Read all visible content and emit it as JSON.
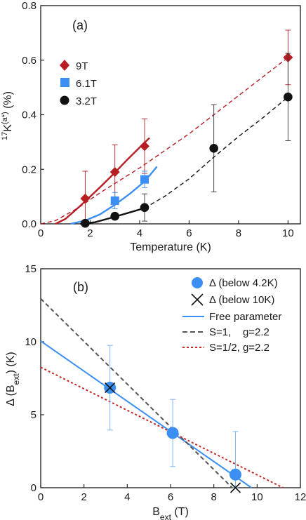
{
  "chart_data": [
    {
      "panel": "(a)",
      "type": "scatter",
      "xlabel": "Temperature (K)",
      "ylabel_parts": {
        "pre": "17",
        "main": "K",
        "sup": "(a*)",
        "unit": " (%)"
      },
      "xlim": [
        0,
        10.5
      ],
      "ylim": [
        0,
        0.8
      ],
      "xticks": [
        0,
        2,
        4,
        6,
        8,
        10
      ],
      "xtick_labels": [
        "0",
        "2",
        "4",
        "6",
        "8",
        "10"
      ],
      "yticks": [
        0,
        0.2,
        0.4,
        0.6,
        0.8
      ],
      "ytick_labels": [
        "0.0",
        "0.2",
        "0.4",
        "0.6",
        "0.8"
      ],
      "legend_position": "upper-left",
      "series": [
        {
          "name": "9T",
          "marker": "diamond",
          "color": "#b81d24",
          "x": [
            1.8,
            3.0,
            4.2,
            10.0
          ],
          "y": [
            0.093,
            0.19,
            0.285,
            0.61
          ],
          "err": [
            0.1,
            0.1,
            0.1,
            0.1
          ]
        },
        {
          "name": "6.1T",
          "marker": "square",
          "color": "#3b8ff3",
          "x": [
            3.0,
            4.2
          ],
          "y": [
            0.085,
            0.163
          ],
          "err": [
            0.03,
            0.03
          ]
        },
        {
          "name": "3.2T",
          "marker": "circle",
          "color": "#111111",
          "x": [
            1.8,
            3.0,
            4.2,
            7.0,
            10.0
          ],
          "y": [
            0.002,
            0.028,
            0.06,
            0.277,
            0.465
          ],
          "err": [
            0.0,
            0.0,
            0.05,
            0.16,
            0.16
          ]
        }
      ],
      "curves": [
        {
          "color": "#b81d24",
          "style": "solid",
          "points": [
            [
              0.6,
              0
            ],
            [
              1,
              0.018
            ],
            [
              1.5,
              0.058
            ],
            [
              2,
              0.1
            ],
            [
              2.5,
              0.143
            ],
            [
              3,
              0.188
            ],
            [
              3.5,
              0.235
            ],
            [
              4,
              0.28
            ],
            [
              4.4,
              0.315
            ]
          ]
        },
        {
          "color": "#b81d24",
          "style": "dashed",
          "points": [
            [
              0,
              0
            ],
            [
              0.6,
              0.012
            ],
            [
              1.5,
              0.058
            ],
            [
              2.5,
              0.12
            ],
            [
              4,
              0.205
            ],
            [
              6,
              0.33
            ],
            [
              8,
              0.47
            ],
            [
              10,
              0.61
            ]
          ]
        },
        {
          "color": "#3b8ff3",
          "style": "solid",
          "points": [
            [
              1.2,
              0
            ],
            [
              1.8,
              0.012
            ],
            [
              2.4,
              0.035
            ],
            [
              3,
              0.07
            ],
            [
              3.6,
              0.11
            ],
            [
              4.2,
              0.155
            ],
            [
              4.7,
              0.21
            ]
          ]
        },
        {
          "color": "#111111",
          "style": "solid",
          "points": [
            [
              1.6,
              0
            ],
            [
              2.2,
              0.006
            ],
            [
              3,
              0.026
            ],
            [
              3.6,
              0.042
            ],
            [
              4.2,
              0.058
            ]
          ]
        },
        {
          "color": "#111111",
          "style": "dashed",
          "points": [
            [
              4.2,
              0.058
            ],
            [
              5,
              0.1
            ],
            [
              6,
              0.165
            ],
            [
              7,
              0.245
            ],
            [
              8,
              0.32
            ],
            [
              9,
              0.39
            ],
            [
              10,
              0.465
            ]
          ]
        }
      ]
    },
    {
      "panel": "(b)",
      "type": "scatter",
      "xlabel_parts": {
        "main": "B",
        "sub": "ext",
        "unit": " (T)"
      },
      "ylabel_parts": {
        "main": "Δ (B",
        "sub": "ext",
        "unit": ") (K)"
      },
      "xlim": [
        0,
        12
      ],
      "ylim": [
        0,
        15
      ],
      "xticks": [
        0,
        2,
        4,
        6,
        8,
        10,
        12
      ],
      "xtick_labels": [
        "0",
        "2",
        "4",
        "6",
        "8",
        "10",
        "12"
      ],
      "yticks": [
        0,
        5,
        10,
        15
      ],
      "ytick_labels": [
        "0",
        "5",
        "10",
        "15"
      ],
      "legend_position": "upper-right",
      "legend": [
        {
          "label": "Δ (below 4.2K)",
          "kind": "circle",
          "color": "#3b8ff3"
        },
        {
          "label": "Δ (below 10K)",
          "kind": "cross",
          "color": "#111111"
        },
        {
          "label": "Free parameter",
          "kind": "line-solid",
          "color": "#3b8ff3"
        },
        {
          "label": "S=1,    g=2.2",
          "kind": "line-dashed",
          "color": "#555555"
        },
        {
          "label": "S=1/2, g=2.2",
          "kind": "line-dotted",
          "color": "#c62828"
        }
      ],
      "points_circle": {
        "color": "#3b8ff3",
        "x": [
          3.2,
          6.1,
          9.0
        ],
        "y": [
          6.85,
          3.75,
          0.9
        ],
        "err": [
          2.9,
          2.3,
          2.95
        ]
      },
      "points_cross": {
        "color": "#111111",
        "x": [
          3.2,
          9.0
        ],
        "y": [
          6.85,
          0.0
        ]
      },
      "lines": [
        {
          "color": "#3b8ff3",
          "style": "solid",
          "x": [
            0,
            9.74
          ],
          "y": [
            10.05,
            0
          ]
        },
        {
          "color": "#555555",
          "style": "dashed",
          "x": [
            0,
            8.85
          ],
          "y": [
            12.95,
            0
          ]
        },
        {
          "color": "#c62828",
          "style": "dotted",
          "x": [
            0,
            11.2
          ],
          "y": [
            8.25,
            0
          ]
        }
      ]
    }
  ]
}
